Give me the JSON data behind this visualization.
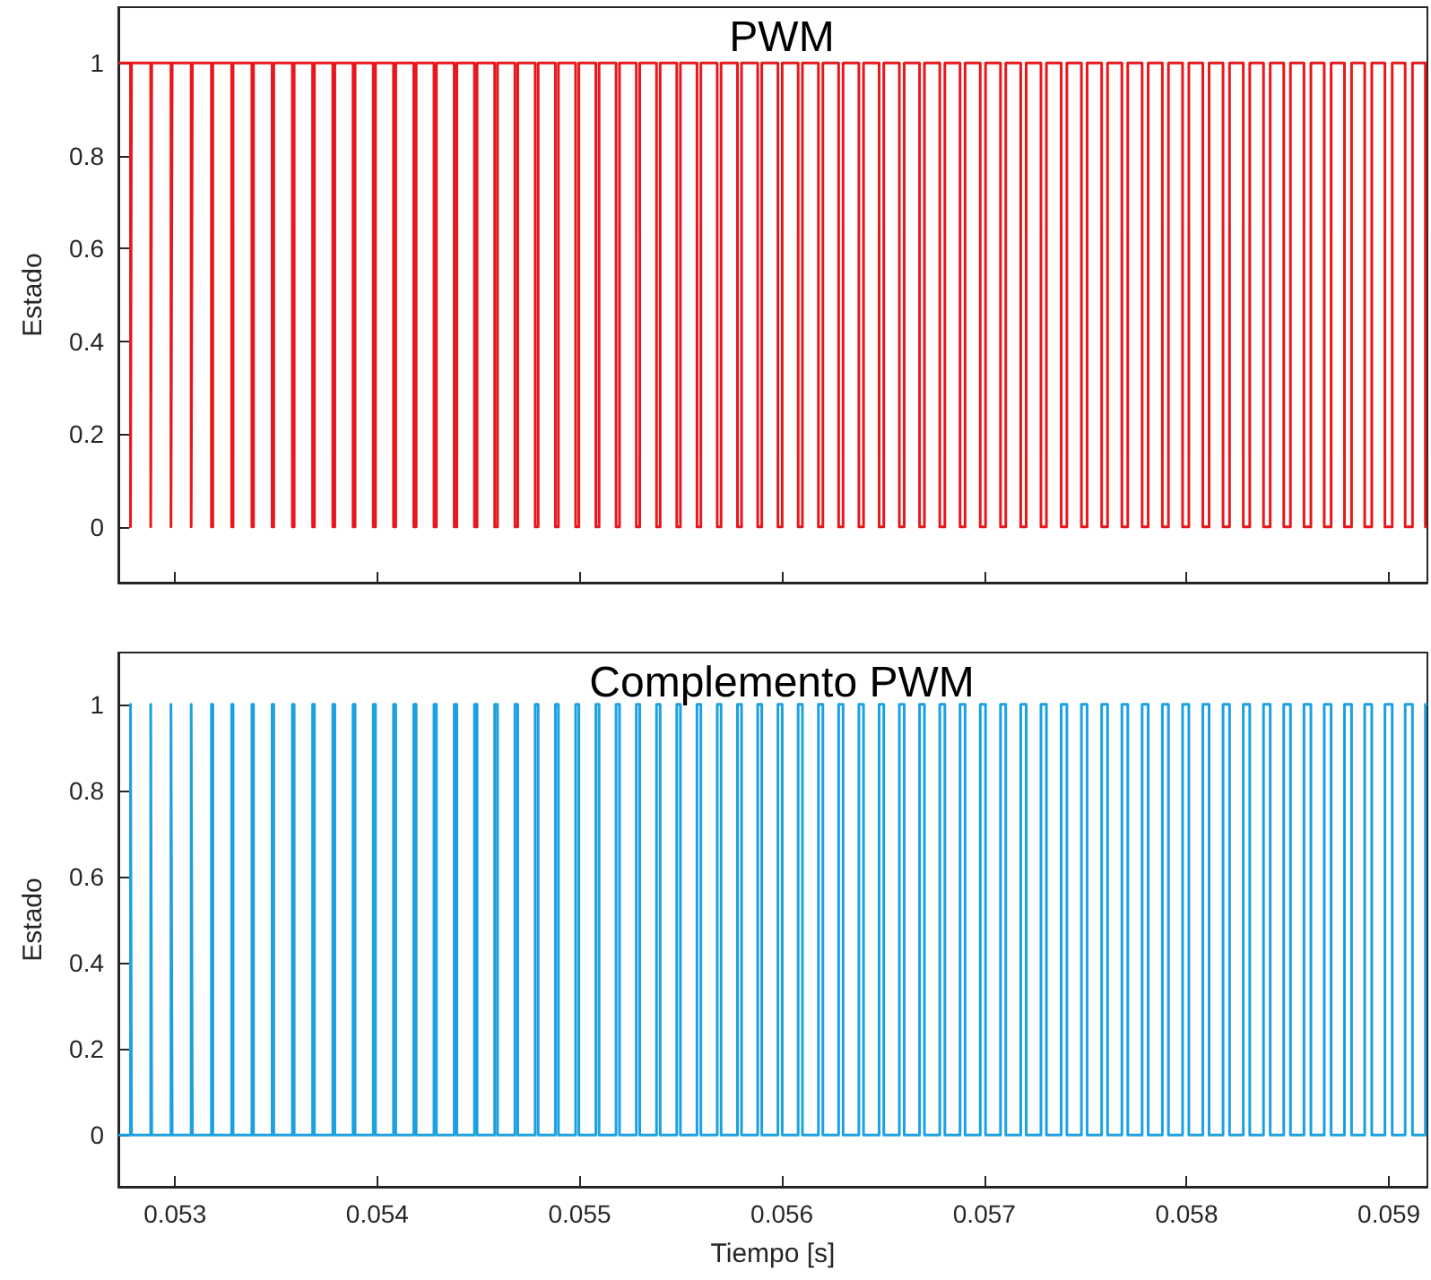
{
  "chart_data": [
    {
      "type": "step",
      "title": "PWM",
      "ylabel": "Estado",
      "xlim": [
        0.05272,
        0.05919
      ],
      "ylim": [
        -0.12,
        1.12
      ],
      "xticks": [
        0.053,
        0.054,
        0.055,
        0.056,
        0.057,
        0.058,
        0.059
      ],
      "yticks": [
        0,
        0.2,
        0.4,
        0.6,
        0.8,
        1
      ],
      "tick_labels": "y",
      "x": [
        0.05272,
        0.05278,
        0.052785,
        0.05288,
        0.052885,
        0.05298,
        0.052986,
        0.05308,
        0.053086,
        0.05318,
        0.053187,
        0.05328,
        0.053287,
        0.05338,
        0.053388,
        0.05348,
        0.053488,
        0.05358,
        0.053589,
        0.05368,
        0.053689,
        0.05378,
        0.05379,
        0.05388,
        0.05389,
        0.05398,
        0.053991,
        0.05408,
        0.054091,
        0.05418,
        0.054192,
        0.05428,
        0.054292,
        0.05438,
        0.054393,
        0.05448,
        0.054493,
        0.05458,
        0.054594,
        0.05468,
        0.054694,
        0.05478,
        0.054795,
        0.05488,
        0.054895,
        0.05498,
        0.054996,
        0.05508,
        0.055096,
        0.05518,
        0.055197,
        0.05528,
        0.055297,
        0.05538,
        0.055398,
        0.05548,
        0.055498,
        0.05558,
        0.055599,
        0.05568,
        0.055699,
        0.05578,
        0.0558,
        0.05588,
        0.0559,
        0.05598,
        0.056001,
        0.05608,
        0.056101,
        0.05618,
        0.056202,
        0.05628,
        0.056302,
        0.05638,
        0.056403,
        0.05648,
        0.056503,
        0.05658,
        0.056604,
        0.05668,
        0.056704,
        0.05678,
        0.056805,
        0.05688,
        0.056905,
        0.05698,
        0.057006,
        0.05708,
        0.057106,
        0.05718,
        0.057207,
        0.05728,
        0.057307,
        0.05738,
        0.057408,
        0.05748,
        0.057508,
        0.05758,
        0.057609,
        0.05768,
        0.057709,
        0.05778,
        0.05781,
        0.05788,
        0.05791,
        0.05798,
        0.058011,
        0.05808,
        0.058111,
        0.05818,
        0.058212,
        0.05828,
        0.058312,
        0.05838,
        0.058413,
        0.05848,
        0.058513,
        0.05858,
        0.058614,
        0.05868,
        0.058714,
        0.05878,
        0.058815,
        0.05888,
        0.058915,
        0.05898,
        0.059016,
        0.05908,
        0.059116,
        0.05918,
        0.05919
      ],
      "series": [
        {
          "color": "#e8171c",
          "values": [
            1,
            0,
            1,
            0,
            1,
            0,
            1,
            0,
            1,
            0,
            1,
            0,
            1,
            0,
            1,
            0,
            1,
            0,
            1,
            0,
            1,
            0,
            1,
            0,
            1,
            0,
            1,
            0,
            1,
            0,
            1,
            0,
            1,
            0,
            1,
            0,
            1,
            0,
            1,
            0,
            1,
            0,
            1,
            0,
            1,
            0,
            1,
            0,
            1,
            0,
            1,
            0,
            1,
            0,
            1,
            0,
            1,
            0,
            1,
            0,
            1,
            0,
            1,
            0,
            1,
            0,
            1,
            0,
            1,
            0,
            1,
            0,
            1,
            0,
            1,
            0,
            1,
            0,
            1,
            0,
            1,
            0,
            1,
            0,
            1,
            0,
            1,
            0,
            1,
            0,
            1,
            0,
            1,
            0,
            1,
            0,
            1,
            0,
            1,
            0,
            1,
            0,
            1,
            0,
            1,
            0,
            1,
            0,
            1,
            0,
            1,
            0,
            1,
            0,
            1,
            0,
            1,
            0,
            1,
            0,
            1,
            0,
            1,
            0,
            1,
            0,
            1,
            0,
            1,
            0,
            0
          ]
        }
      ]
    },
    {
      "type": "step",
      "title": "Complemento PWM",
      "xlabel": "Tiempo [s]",
      "ylabel": "Estado",
      "xlim": [
        0.05272,
        0.05919
      ],
      "ylim": [
        -0.12,
        1.12
      ],
      "xticks": [
        0.053,
        0.054,
        0.055,
        0.056,
        0.057,
        0.058,
        0.059
      ],
      "yticks": [
        0,
        0.2,
        0.4,
        0.6,
        0.8,
        1
      ],
      "x": [
        0.05272,
        0.05278,
        0.052785,
        0.05288,
        0.052885,
        0.05298,
        0.052986,
        0.05308,
        0.053086,
        0.05318,
        0.053187,
        0.05328,
        0.053287,
        0.05338,
        0.053388,
        0.05348,
        0.053488,
        0.05358,
        0.053589,
        0.05368,
        0.053689,
        0.05378,
        0.05379,
        0.05388,
        0.05389,
        0.05398,
        0.053991,
        0.05408,
        0.054091,
        0.05418,
        0.054192,
        0.05428,
        0.054292,
        0.05438,
        0.054393,
        0.05448,
        0.054493,
        0.05458,
        0.054594,
        0.05468,
        0.054694,
        0.05478,
        0.054795,
        0.05488,
        0.054895,
        0.05498,
        0.054996,
        0.05508,
        0.055096,
        0.05518,
        0.055197,
        0.05528,
        0.055297,
        0.05538,
        0.055398,
        0.05548,
        0.055498,
        0.05558,
        0.055599,
        0.05568,
        0.055699,
        0.05578,
        0.0558,
        0.05588,
        0.0559,
        0.05598,
        0.056001,
        0.05608,
        0.056101,
        0.05618,
        0.056202,
        0.05628,
        0.056302,
        0.05638,
        0.056403,
        0.05648,
        0.056503,
        0.05658,
        0.056604,
        0.05668,
        0.056704,
        0.05678,
        0.056805,
        0.05688,
        0.056905,
        0.05698,
        0.057006,
        0.05708,
        0.057106,
        0.05718,
        0.057207,
        0.05728,
        0.057307,
        0.05738,
        0.057408,
        0.05748,
        0.057508,
        0.05758,
        0.057609,
        0.05768,
        0.057709,
        0.05778,
        0.05781,
        0.05788,
        0.05791,
        0.05798,
        0.058011,
        0.05808,
        0.058111,
        0.05818,
        0.058212,
        0.05828,
        0.058312,
        0.05838,
        0.058413,
        0.05848,
        0.058513,
        0.05858,
        0.058614,
        0.05868,
        0.058714,
        0.05878,
        0.058815,
        0.05888,
        0.058915,
        0.05898,
        0.059016,
        0.05908,
        0.059116,
        0.05918,
        0.05919
      ],
      "series": [
        {
          "color": "#1ba1e2",
          "values": [
            0,
            1,
            0,
            1,
            0,
            1,
            0,
            1,
            0,
            1,
            0,
            1,
            0,
            1,
            0,
            1,
            0,
            1,
            0,
            1,
            0,
            1,
            0,
            1,
            0,
            1,
            0,
            1,
            0,
            1,
            0,
            1,
            0,
            1,
            0,
            1,
            0,
            1,
            0,
            1,
            0,
            1,
            0,
            1,
            0,
            1,
            0,
            1,
            0,
            1,
            0,
            1,
            0,
            1,
            0,
            1,
            0,
            1,
            0,
            1,
            0,
            1,
            0,
            1,
            0,
            1,
            0,
            1,
            0,
            1,
            0,
            1,
            0,
            1,
            0,
            1,
            0,
            1,
            0,
            1,
            0,
            1,
            0,
            1,
            0,
            1,
            0,
            1,
            0,
            1,
            0,
            1,
            0,
            1,
            0,
            1,
            0,
            1,
            0,
            1,
            0,
            1,
            0,
            1,
            0,
            1,
            0,
            1,
            0,
            1,
            0,
            1,
            0,
            1,
            0,
            1,
            0,
            1,
            0,
            1,
            0,
            1,
            0,
            1,
            0,
            1,
            0,
            1,
            0,
            1,
            1
          ]
        }
      ]
    }
  ]
}
